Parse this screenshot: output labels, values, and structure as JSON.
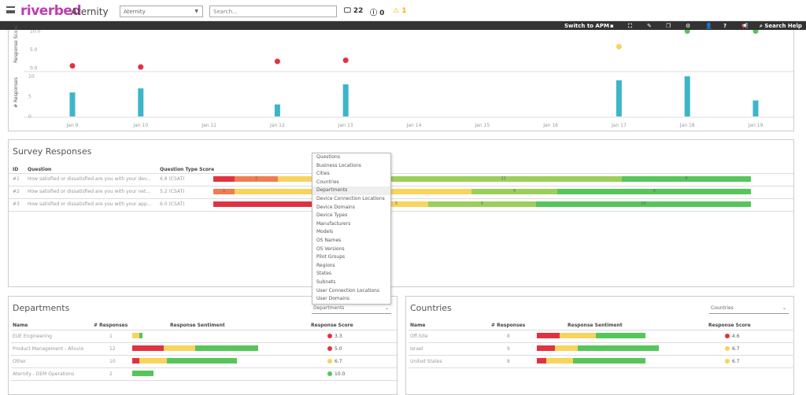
{
  "header": {
    "logo": "riverbed",
    "app": "Aternity",
    "scope_select": "Aternity",
    "search_placeholder": "Search...",
    "devices_count": "22",
    "info_count": "0",
    "warn_count": "1"
  },
  "toolbar": {
    "switch_label": "Switch to APM",
    "search_help": "Search Help",
    "icons": [
      "save-icon",
      "fullscreen-icon",
      "edit-home-icon",
      "copy-icon",
      "gear-icon",
      "user-icon",
      "help-icon",
      "megaphone-icon",
      "search-icon"
    ]
  },
  "colors": {
    "red": "#e03342",
    "orange": "#ef7d4f",
    "yellow": "#f8d45c",
    "lightgreen": "#9bcf5a",
    "green": "#56c65a",
    "teal": "#3db5c8",
    "brand": "#c03cb0"
  },
  "chart_data": {
    "type": "scatter+bar",
    "x": [
      "Jan 9",
      "Jan 10",
      "Jan 11",
      "Jan 12",
      "Jan 13",
      "Jan 14",
      "Jan 15",
      "Jan 16",
      "Jan 17",
      "Jan 18",
      "Jan 19"
    ],
    "score": {
      "ylabel": "Response Score",
      "ticks": [
        "0.0",
        "5.0",
        "10.0"
      ],
      "ylim": [
        0,
        10
      ],
      "values": [
        0.6,
        0.3,
        null,
        1.8,
        2.1,
        null,
        null,
        null,
        5.8,
        10,
        10
      ],
      "colors": [
        "red",
        "red",
        null,
        "red",
        "red",
        null,
        null,
        null,
        "yellow",
        "green",
        "green"
      ]
    },
    "responses": {
      "ylabel": "# Responses",
      "ticks": [
        "0",
        "5",
        "10"
      ],
      "ylim": [
        0,
        10
      ],
      "values": [
        6,
        7,
        0,
        3,
        8,
        0,
        0,
        0,
        9,
        10,
        4
      ]
    }
  },
  "survey": {
    "title": "Survey Responses",
    "headers": {
      "id": "ID",
      "question": "Question",
      "score": "Question Type Score"
    },
    "rows": [
      {
        "id": "#1",
        "question": "How satisfied or dissatisfied are you with your dev...",
        "score": "6.8 (CSAT)",
        "segments": [
          {
            "c": "red",
            "v": 1,
            "label": ""
          },
          {
            "c": "orange",
            "v": 2,
            "label": "2"
          },
          {
            "c": "yellow",
            "v": 5,
            "label": ""
          },
          {
            "c": "lightgreen",
            "v": 11,
            "label": "11"
          },
          {
            "c": "green",
            "v": 6,
            "label": "6"
          }
        ]
      },
      {
        "id": "#2",
        "question": "How satisfied or dissatisfied are you with your net...",
        "score": "5.2 (CSAT)",
        "segments": [
          {
            "c": "orange",
            "v": 1,
            "label": "1"
          },
          {
            "c": "yellow",
            "v": 11,
            "label": ""
          },
          {
            "c": "lightgreen",
            "v": 4,
            "label": "4"
          },
          {
            "c": "green",
            "v": 9,
            "label": "9"
          }
        ]
      },
      {
        "id": "#3",
        "question": "How satisfied or dissatisfied are you with your app...",
        "score": "6.0 (CSAT)",
        "segments": [
          {
            "c": "red",
            "v": 7,
            "label": ""
          },
          {
            "c": "yellow",
            "v": 3,
            "label": "3"
          },
          {
            "c": "lightgreen",
            "v": 5,
            "label": "5"
          },
          {
            "c": "green",
            "v": 10,
            "label": "10"
          }
        ]
      }
    ]
  },
  "dropdown": {
    "items": [
      "Questions",
      "Business Locations",
      "Cities",
      "Countries",
      "Departments",
      "Device Connection Locations",
      "Device Domains",
      "Device Types",
      "Manufacturers",
      "Models",
      "OS Names",
      "OS Versions",
      "Pilot Groups",
      "Regions",
      "States",
      "Subnets",
      "User Connection Locations",
      "User Domains"
    ],
    "highlighted": "Departments"
  },
  "departments": {
    "title": "Departments",
    "select": "Departments",
    "headers": {
      "name": "Name",
      "responses": "# Responses",
      "sentiment": "Response Sentiment",
      "score": "Response Score"
    },
    "rows": [
      {
        "name": "EUE Engineering",
        "responses": "1",
        "score": "3.3",
        "score_color": "red",
        "sentiment": [
          {
            "c": "yellow",
            "v": 0.9
          },
          {
            "c": "green",
            "v": 0.4
          }
        ]
      },
      {
        "name": "Product Management - Alluvio",
        "responses": "12",
        "score": "5.0",
        "score_color": "red",
        "sentiment": [
          {
            "c": "red",
            "v": 4
          },
          {
            "c": "yellow",
            "v": 4
          },
          {
            "c": "green",
            "v": 8
          }
        ]
      },
      {
        "name": "Other",
        "responses": "10",
        "score": "6.7",
        "score_color": "yellow",
        "sentiment": [
          {
            "c": "red",
            "v": 0.9
          },
          {
            "c": "yellow",
            "v": 3.5
          },
          {
            "c": "green",
            "v": 8.9
          }
        ]
      },
      {
        "name": "Aternity - DEM Operations",
        "responses": "2",
        "score": "10.0",
        "score_color": "green",
        "sentiment": [
          {
            "c": "green",
            "v": 2.7
          }
        ]
      }
    ]
  },
  "countries": {
    "title": "Countries",
    "select": "Countries",
    "headers": {
      "name": "Name",
      "responses": "# Responses",
      "sentiment": "Response Sentiment",
      "score": "Response Score"
    },
    "rows": [
      {
        "name": "Off-Site",
        "responses": "8",
        "score": "4.6",
        "score_color": "red",
        "sentiment": [
          {
            "c": "red",
            "v": 2.9
          },
          {
            "c": "yellow",
            "v": 4.6
          },
          {
            "c": "green",
            "v": 6.3
          }
        ]
      },
      {
        "name": "Israel",
        "responses": "9",
        "score": "6.7",
        "score_color": "yellow",
        "sentiment": [
          {
            "c": "red",
            "v": 2.3
          },
          {
            "c": "yellow",
            "v": 2.9
          },
          {
            "c": "green",
            "v": 10.3
          }
        ]
      },
      {
        "name": "United States",
        "responses": "8",
        "score": "6.7",
        "score_color": "yellow",
        "sentiment": [
          {
            "c": "red",
            "v": 1.2
          },
          {
            "c": "yellow",
            "v": 3.4
          },
          {
            "c": "green",
            "v": 9.2
          }
        ]
      }
    ]
  }
}
